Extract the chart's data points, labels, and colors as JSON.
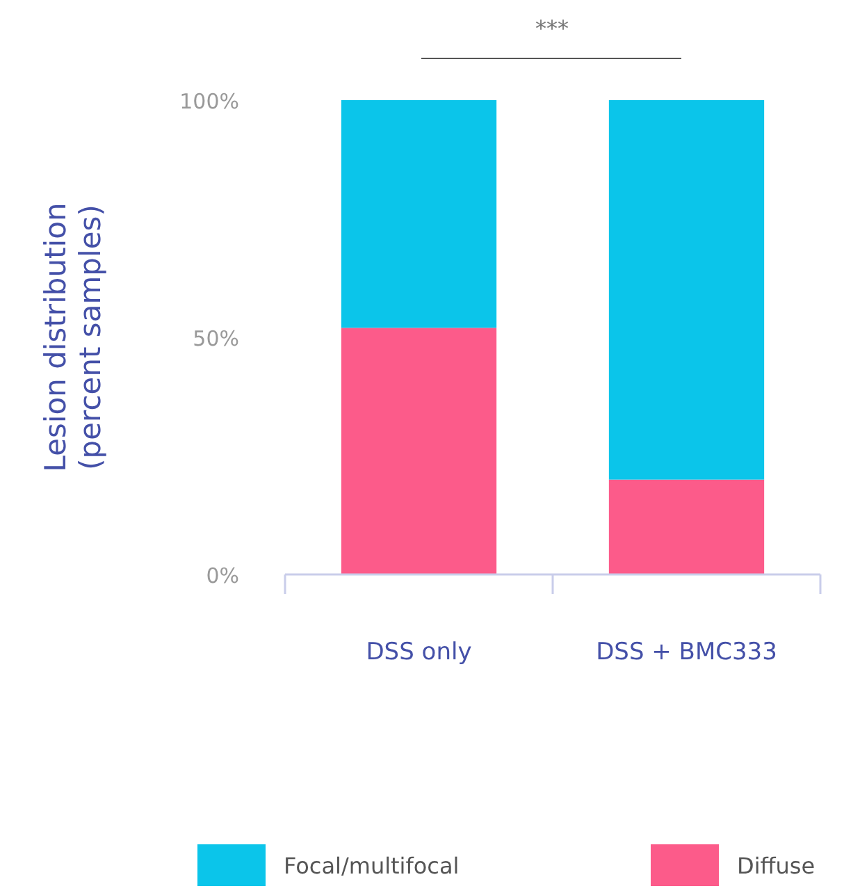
{
  "chart_data": {
    "type": "bar",
    "stacked": true,
    "ylabel": "Lesion distribution\n(percent samples)",
    "categories": [
      "DSS only",
      "DSS + BMC333"
    ],
    "series": [
      {
        "name": "Diffuse",
        "color": "#fc5b8a",
        "values": [
          52,
          20
        ]
      },
      {
        "name": "Focal/multifocal",
        "color": "#0bc5ea",
        "values": [
          48,
          80
        ]
      }
    ],
    "ylim": [
      0,
      100
    ],
    "yticks": [
      {
        "value": 0,
        "label": "0%"
      },
      {
        "value": 50,
        "label": "50%"
      },
      {
        "value": 100,
        "label": "100%"
      }
    ],
    "grid": false,
    "legend": "bottom",
    "annotations": [
      "***"
    ]
  }
}
